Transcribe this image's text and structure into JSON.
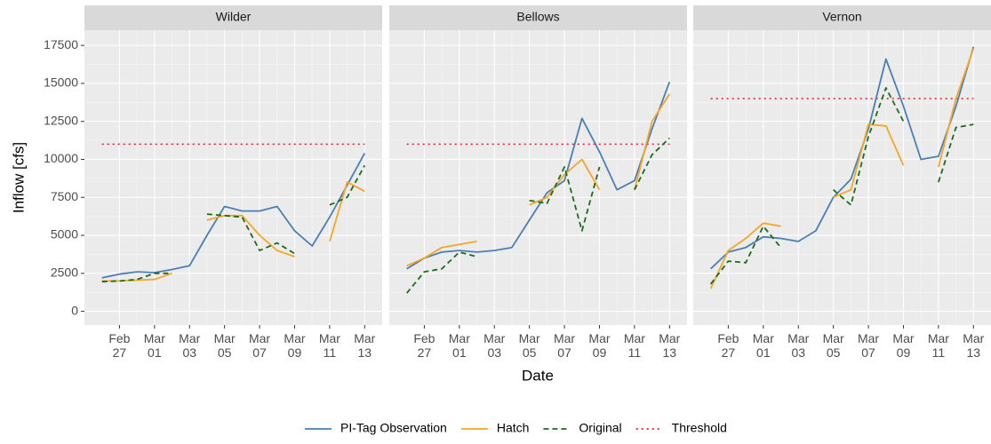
{
  "chart_data": {
    "type": "line",
    "x_label": "Date",
    "y_label": "Inflow [cfs]",
    "x": [
      "Feb 26",
      "Feb 27",
      "Feb 28",
      "Mar 01",
      "Mar 02",
      "Mar 03",
      "Mar 04",
      "Mar 05",
      "Mar 06",
      "Mar 07",
      "Mar 08",
      "Mar 09",
      "Mar 10",
      "Mar 11",
      "Mar 12",
      "Mar 13"
    ],
    "xlim": [
      "Feb 25",
      "Mar 14"
    ],
    "xticks": [
      "Feb 27",
      "Mar 01",
      "Mar 03",
      "Mar 05",
      "Mar 07",
      "Mar 09",
      "Mar 11",
      "Mar 13"
    ],
    "ylim": [
      -900,
      18500
    ],
    "yticks": [
      0,
      2500,
      5000,
      7500,
      10000,
      12500,
      15000,
      17500
    ],
    "grid": true,
    "legend_position": "bottom",
    "legend": [
      {
        "name": "PI-Tag Observation",
        "color": "#4a7fb5",
        "linestyle": "solid"
      },
      {
        "name": "Hatch",
        "color": "#f5a623",
        "linestyle": "solid"
      },
      {
        "name": "Original",
        "color": "#1e6b1e",
        "linestyle": "dashed"
      },
      {
        "name": "Threshold",
        "color": "#e31a1c",
        "linestyle": "dotted"
      }
    ],
    "panels": [
      {
        "title": "Wilder",
        "threshold": 11000,
        "series": [
          {
            "values": [
              2200,
              2450,
              2600,
              2550,
              2750,
              3000,
              5000,
              6900,
              6600,
              6600,
              6900,
              5300,
              4300,
              6200,
              8300,
              10400
            ]
          },
          {
            "values": [
              2000,
              2000,
              2050,
              2100,
              2500,
              null,
              6000,
              6300,
              6300,
              5000,
              4000,
              3600,
              null,
              4600,
              8500,
              7900
            ]
          },
          {
            "values": [
              1950,
              2000,
              2100,
              2500,
              2500,
              null,
              6400,
              6300,
              6200,
              4000,
              4500,
              3800,
              null,
              7000,
              7500,
              9600
            ]
          }
        ]
      },
      {
        "title": "Bellows",
        "threshold": 11000,
        "series": [
          {
            "values": [
              2800,
              3500,
              3900,
              4000,
              3900,
              4000,
              4200,
              6000,
              7800,
              8600,
              12700,
              10500,
              8000,
              8600,
              12000,
              15100
            ]
          },
          {
            "values": [
              3000,
              3500,
              4200,
              4400,
              4600,
              null,
              null,
              7000,
              7500,
              9000,
              10000,
              8000,
              null,
              8000,
              12500,
              14300
            ]
          },
          {
            "values": [
              1200,
              2600,
              2800,
              3900,
              3600,
              null,
              null,
              7300,
              7100,
              9500,
              5300,
              9500,
              null,
              8000,
              10300,
              11400
            ]
          }
        ]
      },
      {
        "title": "Vernon",
        "threshold": 14000,
        "series": [
          {
            "values": [
              2800,
              3900,
              4200,
              4900,
              4800,
              4600,
              5300,
              7500,
              8700,
              12000,
              16600,
              13500,
              10000,
              10200,
              13500,
              17400
            ]
          },
          {
            "values": [
              1500,
              4000,
              4800,
              5800,
              5600,
              null,
              null,
              7500,
              8000,
              12300,
              12200,
              9600,
              null,
              9500,
              14000,
              17300
            ]
          },
          {
            "values": [
              1800,
              3300,
              3200,
              5600,
              4200,
              null,
              null,
              8000,
              7000,
              11500,
              14700,
              12500,
              null,
              8500,
              12100,
              12300
            ]
          }
        ]
      }
    ]
  }
}
